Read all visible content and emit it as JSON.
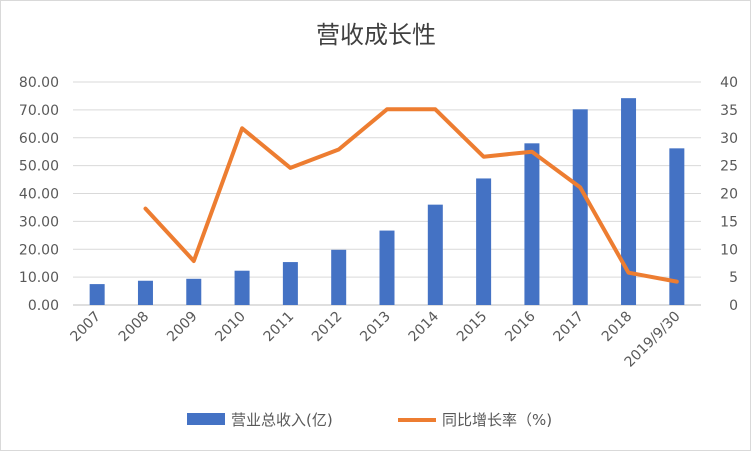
{
  "chart_data": {
    "type": "bar+line",
    "title": "营收成长性",
    "categories": [
      "2007",
      "2008",
      "2009",
      "2010",
      "2011",
      "2012",
      "2013",
      "2014",
      "2015",
      "2016",
      "2017",
      "2018",
      "2019/9/30"
    ],
    "series": [
      {
        "name": "营业总收入(亿)",
        "type": "bar",
        "axis": "left",
        "color": "#4472c4",
        "values": [
          7.5,
          8.7,
          9.4,
          12.3,
          15.4,
          19.8,
          26.7,
          36.0,
          45.4,
          58.0,
          70.2,
          74.2,
          56.2
        ]
      },
      {
        "name": "同比增长率（%)",
        "type": "line",
        "axis": "right",
        "color": "#ed7d31",
        "values": [
          null,
          17.3,
          7.9,
          31.7,
          24.6,
          27.9,
          35.1,
          35.1,
          26.6,
          27.5,
          21.1,
          5.8,
          4.2
        ]
      }
    ],
    "left_axis": {
      "ylim": [
        0,
        80
      ],
      "ticks": [
        "0.00",
        "10.00",
        "20.00",
        "30.00",
        "40.00",
        "50.00",
        "60.00",
        "70.00",
        "80.00"
      ]
    },
    "right_axis": {
      "ylim": [
        0,
        40
      ],
      "ticks": [
        "0",
        "5",
        "10",
        "15",
        "20",
        "25",
        "30",
        "35",
        "40"
      ]
    },
    "grid": true,
    "legend_position": "bottom"
  }
}
